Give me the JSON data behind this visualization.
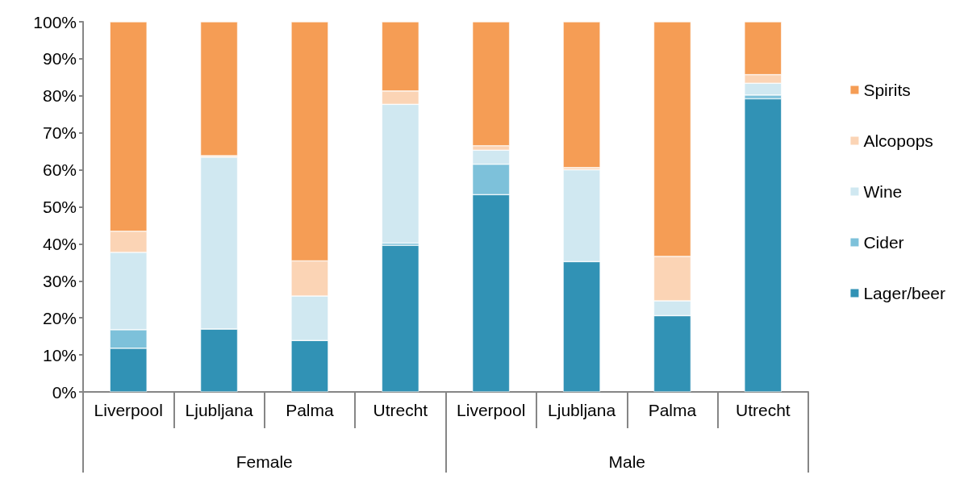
{
  "chart_data": {
    "type": "bar",
    "stacked": true,
    "categories": [
      "Liverpool",
      "Ljubljana",
      "Palma",
      "Utrecht",
      "Liverpool",
      "Ljubljana",
      "Palma",
      "Utrecht"
    ],
    "series": [
      {
        "name": "Lager/beer",
        "color": "#3192b5",
        "values": [
          11.8,
          17,
          13.9,
          39.6,
          53.3,
          35.2,
          20.6,
          79.2
        ]
      },
      {
        "name": "Cider",
        "color": "#7dc1da",
        "values": [
          5,
          0,
          0,
          0.6,
          8.2,
          0,
          0,
          1
        ]
      },
      {
        "name": "Wine",
        "color": "#d0e8f1",
        "values": [
          20.9,
          46.4,
          12,
          37.5,
          3.8,
          24.8,
          4,
          3.2
        ]
      },
      {
        "name": "Alcopops",
        "color": "#fbd4b5",
        "values": [
          5.7,
          0.4,
          9.5,
          3.6,
          1.2,
          0.6,
          12,
          2.3
        ]
      },
      {
        "name": "Spirits",
        "color": "#f59d55",
        "values": [
          56.6,
          36.2,
          64.6,
          18.7,
          33.5,
          39.4,
          63.4,
          14.3
        ]
      }
    ],
    "ylim": [
      0,
      100
    ],
    "yticks": [
      {
        "value": 0,
        "label": "0%"
      },
      {
        "value": 10,
        "label": "10%"
      },
      {
        "value": 20,
        "label": "20%"
      },
      {
        "value": 30,
        "label": "30%"
      },
      {
        "value": 40,
        "label": "40%"
      },
      {
        "value": 50,
        "label": "50%"
      },
      {
        "value": 60,
        "label": "60%"
      },
      {
        "value": 70,
        "label": "70%"
      },
      {
        "value": 80,
        "label": "80%"
      },
      {
        "value": 90,
        "label": "90%"
      },
      {
        "value": 100,
        "label": "100%"
      }
    ],
    "annotations": [
      "Female",
      "Male"
    ],
    "legend": "right",
    "grid": false
  }
}
